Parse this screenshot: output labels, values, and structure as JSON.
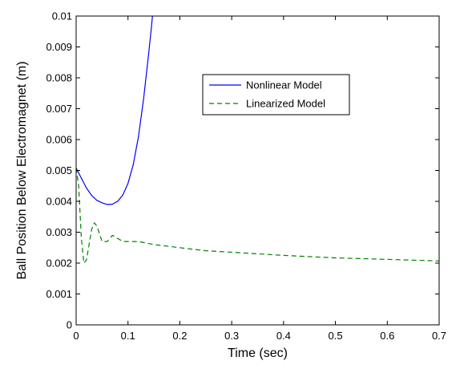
{
  "chart_data": {
    "type": "line",
    "title": "",
    "xlabel": "Time (sec)",
    "ylabel": "Ball Position Below Electromagnet (m)",
    "xlim": [
      0,
      0.7
    ],
    "ylim": [
      0,
      0.01
    ],
    "x_ticks": [
      "0",
      "0.1",
      "0.2",
      "0.3",
      "0.4",
      "0.5",
      "0.6",
      "0.7"
    ],
    "y_ticks": [
      "0",
      "0.001",
      "0.002",
      "0.003",
      "0.004",
      "0.005",
      "0.006",
      "0.007",
      "0.008",
      "0.009",
      "0.01"
    ],
    "grid": false,
    "legend_position": "top-center",
    "series": [
      {
        "name": "Nonlinear Model",
        "color": "#0000ff",
        "line_style": "solid",
        "x": [
          0,
          0.01,
          0.02,
          0.03,
          0.04,
          0.05,
          0.06,
          0.065,
          0.07,
          0.08,
          0.09,
          0.1,
          0.11,
          0.12,
          0.13,
          0.14,
          0.145,
          0.15
        ],
        "y": [
          0.00508,
          0.00475,
          0.00443,
          0.00419,
          0.00403,
          0.00395,
          0.0039,
          0.0039,
          0.00391,
          0.004,
          0.0042,
          0.00458,
          0.00518,
          0.00608,
          0.0073,
          0.0088,
          0.0096,
          0.0105
        ]
      },
      {
        "name": "Linearized Model",
        "color": "#008000",
        "line_style": "dashed",
        "x": [
          0,
          0.005,
          0.01,
          0.015,
          0.02,
          0.03,
          0.035,
          0.04,
          0.05,
          0.06,
          0.07,
          0.08,
          0.09,
          0.1,
          0.12,
          0.15,
          0.2,
          0.25,
          0.3,
          0.4,
          0.5,
          0.6,
          0.7
        ],
        "y": [
          0.00508,
          0.0045,
          0.0028,
          0.002,
          0.0021,
          0.0031,
          0.0033,
          0.0032,
          0.0027,
          0.0027,
          0.0029,
          0.0028,
          0.0027,
          0.0027,
          0.0027,
          0.0026,
          0.0025,
          0.0024,
          0.00235,
          0.00225,
          0.00217,
          0.00212,
          0.00207
        ]
      }
    ]
  }
}
